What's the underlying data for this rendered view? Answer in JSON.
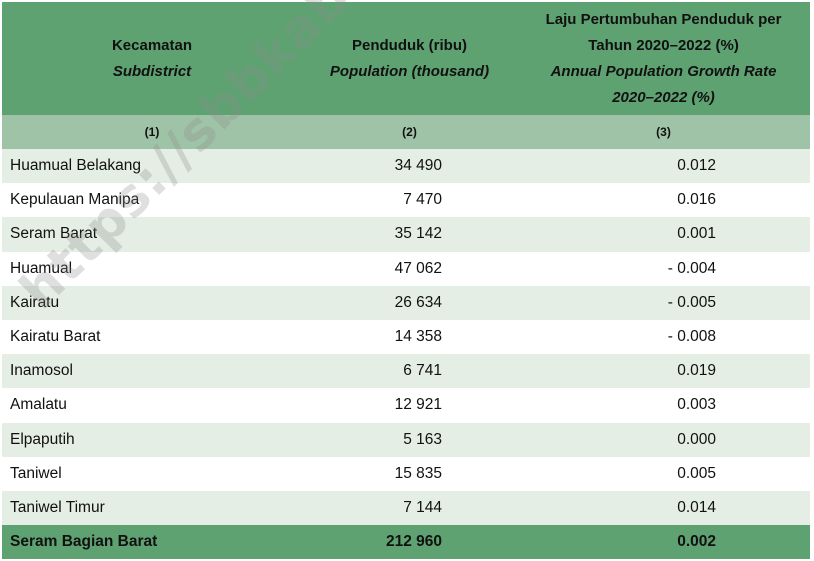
{
  "header": {
    "col1": {
      "label": "Kecamatan",
      "sub": "Subdistrict"
    },
    "col2": {
      "label": "Penduduk (ribu)",
      "sub": "Population (thousand)"
    },
    "col3": {
      "label_line1": "Laju Pertumbuhan Penduduk per",
      "label_line2": "Tahun 2020–2022 (%)",
      "sub_line1": "Annual Population Growth Rate",
      "sub_line2": "2020–2022 (%)"
    }
  },
  "col_numbers": [
    "(1)",
    "(2)",
    "(3)"
  ],
  "rows": [
    {
      "name": "Huamual Belakang",
      "population": "34 490",
      "growth": "0.012"
    },
    {
      "name": "Kepulauan Manipa",
      "population": "7 470",
      "growth": "0.016"
    },
    {
      "name": "Seram Barat",
      "population": "35 142",
      "growth": "0.001"
    },
    {
      "name": "Huamual",
      "population": "47 062",
      "growth": "- 0.004"
    },
    {
      "name": "Kairatu",
      "population": "26 634",
      "growth": "- 0.005"
    },
    {
      "name": "Kairatu Barat",
      "population": "14 358",
      "growth": "- 0.008"
    },
    {
      "name": "Inamosol",
      "population": "6 741",
      "growth": "0.019"
    },
    {
      "name": "Amalatu",
      "population": "12 921",
      "growth": "0.003"
    },
    {
      "name": "Elpaputih",
      "population": "5 163",
      "growth": "0.000"
    },
    {
      "name": "Taniwel",
      "population": "15 835",
      "growth": "0.005"
    },
    {
      "name": "Taniwel Timur",
      "population": "7 144",
      "growth": "0.014"
    }
  ],
  "total": {
    "name": "Seram Bagian Barat",
    "population": "212 960",
    "growth": "0.002"
  },
  "watermark": "https://sbbkab.bps.go.id"
}
